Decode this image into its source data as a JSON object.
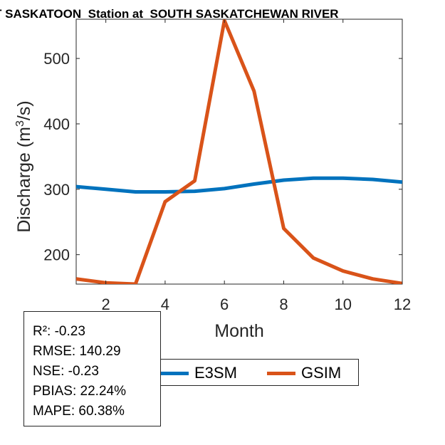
{
  "title": "T SASKATOON  Station at  SOUTH SASKATCHEWAN RIVER",
  "stats": [
    "R²: -0.23",
    "RMSE: 140.29",
    "NSE: -0.23",
    "PBIAS: 22.24%",
    "MAPE: 60.38%"
  ],
  "colors": {
    "E3SM": "#0072BD",
    "GSIM": "#D95319"
  },
  "chart_data": {
    "type": "line",
    "title": "T SASKATOON  Station at  SOUTH SASKATCHEWAN RIVER",
    "xlabel": "Month",
    "ylabel": "Discharge (m",
    "ylabel_sup": "3",
    "ylabel_tail": "/s)",
    "xlim": [
      1,
      12
    ],
    "ylim": [
      155,
      560
    ],
    "xticks": [
      2,
      4,
      6,
      8,
      10,
      12
    ],
    "yticks": [
      200,
      300,
      400,
      500
    ],
    "grid": false,
    "legend_position": "bottom",
    "x": [
      1,
      2,
      3,
      4,
      5,
      6,
      7,
      8,
      9,
      10,
      11,
      12
    ],
    "series": [
      {
        "name": "E3SM",
        "values": [
          304,
          300,
          296,
          296,
          297,
          301,
          308,
          314,
          317,
          317,
          315,
          311
        ]
      },
      {
        "name": "GSIM",
        "values": [
          163,
          157,
          155,
          281,
          313,
          558,
          450,
          240,
          195,
          175,
          163,
          156
        ]
      }
    ]
  }
}
